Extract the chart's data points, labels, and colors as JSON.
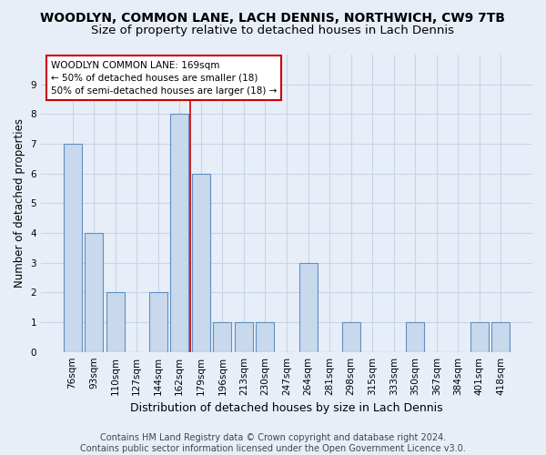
{
  "title": "WOODLYN, COMMON LANE, LACH DENNIS, NORTHWICH, CW9 7TB",
  "subtitle": "Size of property relative to detached houses in Lach Dennis",
  "xlabel": "Distribution of detached houses by size in Lach Dennis",
  "ylabel": "Number of detached properties",
  "categories": [
    "76sqm",
    "93sqm",
    "110sqm",
    "127sqm",
    "144sqm",
    "162sqm",
    "179sqm",
    "196sqm",
    "213sqm",
    "230sqm",
    "247sqm",
    "264sqm",
    "281sqm",
    "298sqm",
    "315sqm",
    "333sqm",
    "350sqm",
    "367sqm",
    "384sqm",
    "401sqm",
    "418sqm"
  ],
  "values": [
    7,
    4,
    2,
    0,
    2,
    8,
    6,
    1,
    1,
    1,
    0,
    3,
    0,
    1,
    0,
    0,
    1,
    0,
    0,
    1,
    1
  ],
  "bar_color": "#c8d8ed",
  "bar_edge_color": "#6090c0",
  "highlight_bar_index": 5,
  "highlight_line_color": "#cc0000",
  "annotation_text": "WOODLYN COMMON LANE: 169sqm\n← 50% of detached houses are smaller (18)\n50% of semi-detached houses are larger (18) →",
  "annotation_box_facecolor": "#ffffff",
  "annotation_box_edgecolor": "#cc0000",
  "ylim": [
    0,
    10
  ],
  "yticks": [
    0,
    1,
    2,
    3,
    4,
    5,
    6,
    7,
    8,
    9
  ],
  "grid_color": "#c8d4e8",
  "background_color": "#e8eef8",
  "plot_bg_color": "#e8eef8",
  "footer_line1": "Contains HM Land Registry data © Crown copyright and database right 2024.",
  "footer_line2": "Contains public sector information licensed under the Open Government Licence v3.0.",
  "title_fontsize": 10,
  "subtitle_fontsize": 9.5,
  "xlabel_fontsize": 9,
  "ylabel_fontsize": 8.5,
  "tick_fontsize": 7.5,
  "annotation_fontsize": 7.5,
  "footer_fontsize": 7
}
